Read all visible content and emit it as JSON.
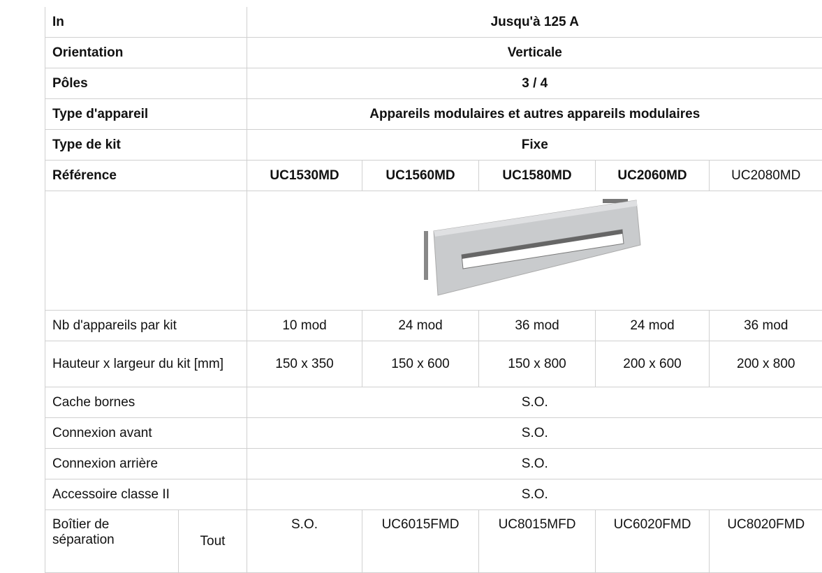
{
  "header_rows": [
    [
      "In",
      "Jusqu'à 125 A"
    ],
    [
      "Orientation",
      "Verticale"
    ],
    [
      "Pôles",
      "3 / 4"
    ],
    [
      "Type d'appareil",
      "Appareils modulaires et autres appareils modulaires"
    ],
    [
      "Type de kit",
      "Fixe"
    ],
    [
      "Référence",
      "UC1530MD",
      "UC1560MD",
      "UC1580MD",
      "UC2060MD",
      "UC2080MD"
    ]
  ],
  "spec_rows": [
    [
      "Nb d'appareils par kit",
      "10 mod",
      "24 mod",
      "36 mod",
      "24 mod",
      "36 mod"
    ],
    [
      "Hauteur x largeur du kit [mm]",
      "150 x 350",
      "150 x 600",
      "150 x 800",
      "200 x 600",
      "200 x 800"
    ],
    [
      "Cache bornes",
      "S.O."
    ],
    [
      "Connexion avant",
      "S.O."
    ],
    [
      "Connexion arrière",
      "S.O."
    ],
    [
      "Accessoire classe II",
      "S.O."
    ],
    [
      "Boîtier de séparation",
      "Tout",
      "S.O.",
      "UC6015FMD",
      "UC8015MFD",
      "UC6020FMD",
      "UC8020FMD"
    ]
  ]
}
